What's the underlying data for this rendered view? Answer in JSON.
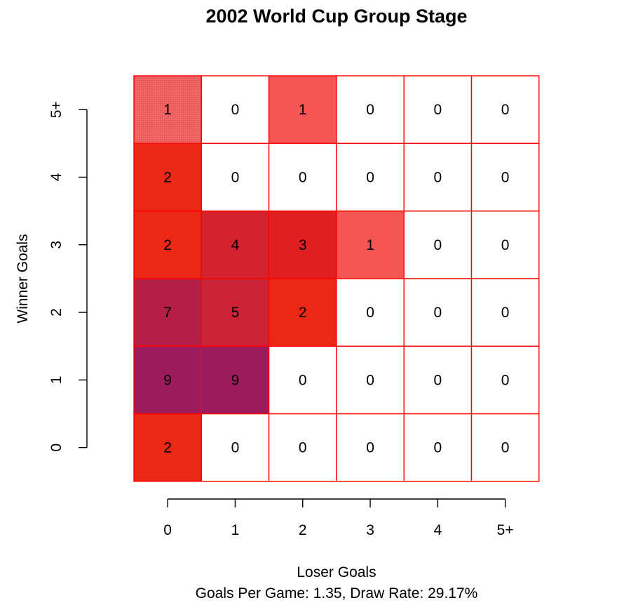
{
  "chart_data": {
    "type": "heatmap",
    "title": "2002 World Cup Group Stage",
    "xlabel": "Loser Goals",
    "ylabel": "Winner Goals",
    "subtitle": "Goals Per Game: 1.35, Draw Rate: 29.17%",
    "x_categories": [
      "0",
      "1",
      "2",
      "3",
      "4",
      "5+"
    ],
    "y_categories": [
      "0",
      "1",
      "2",
      "3",
      "4",
      "5+"
    ],
    "values": [
      [
        2,
        0,
        0,
        0,
        0,
        0
      ],
      [
        9,
        9,
        0,
        0,
        0,
        0
      ],
      [
        7,
        5,
        2,
        0,
        0,
        0
      ],
      [
        2,
        4,
        3,
        1,
        0,
        0
      ],
      [
        2,
        0,
        0,
        0,
        0,
        0
      ],
      [
        1,
        0,
        1,
        0,
        0,
        0
      ]
    ],
    "colors": {
      "0": "#ffffff",
      "1": "#f45555",
      "2": "#eb2716",
      "3": "#e02020",
      "4": "#d3232f",
      "5": "#cc2236",
      "7": "#b41f48",
      "9": "#9c1b5c"
    },
    "shaded_cells": [
      [
        5,
        0
      ]
    ],
    "border_color": "#ff0000",
    "grid": true
  }
}
